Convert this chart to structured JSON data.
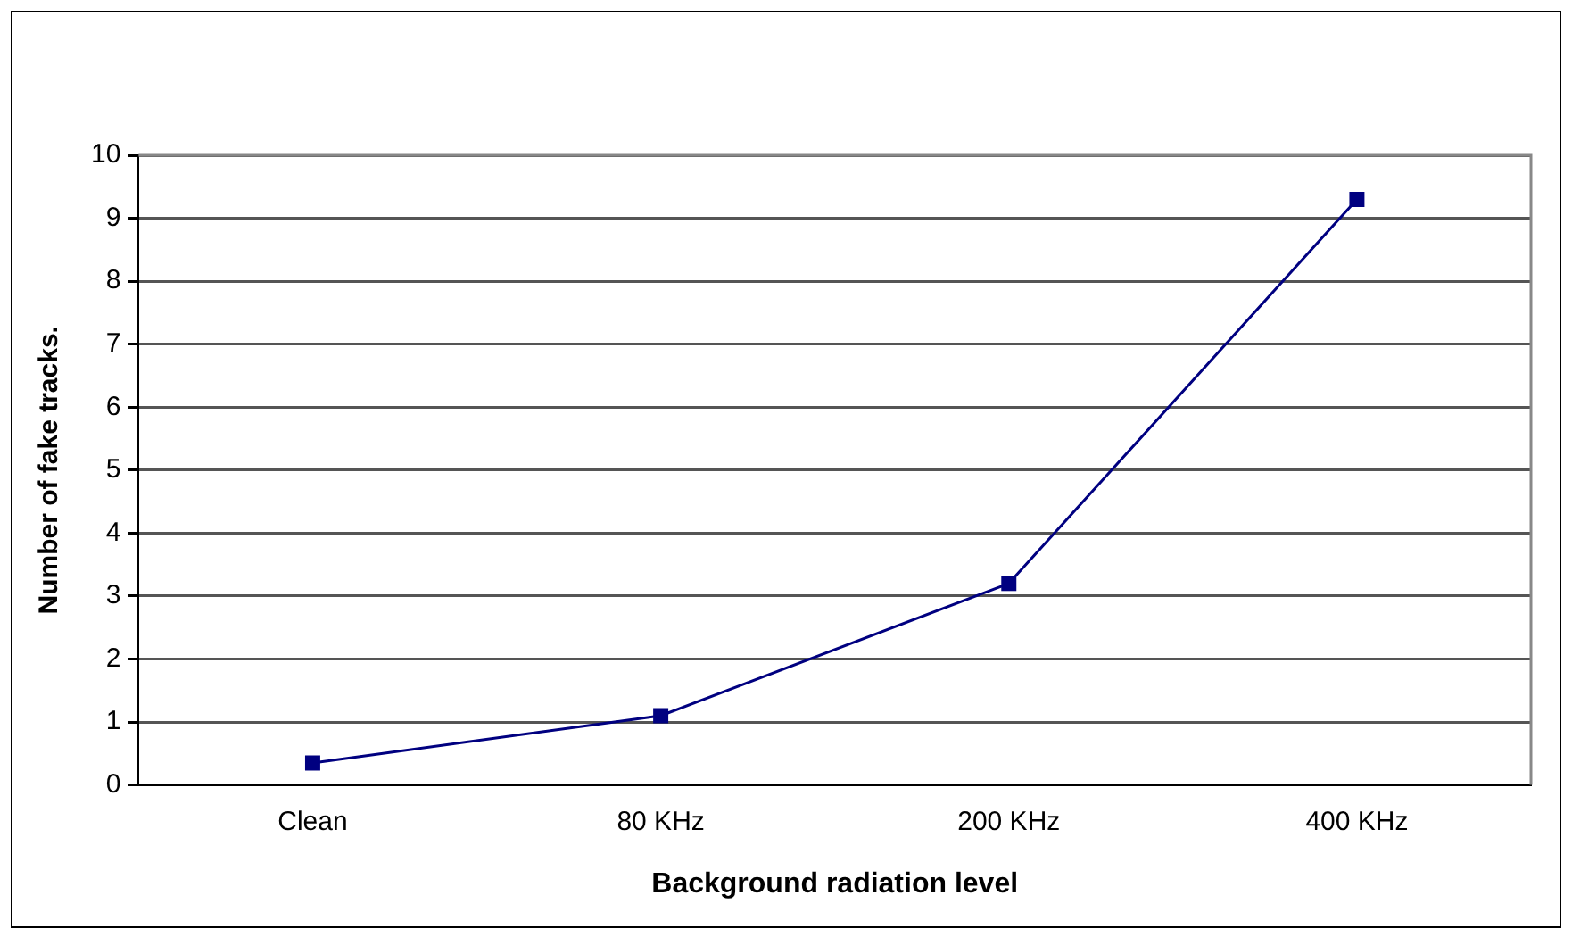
{
  "chart_data": {
    "type": "line",
    "xlabel": "Background radiation level",
    "ylabel": "Number of fake tracks.",
    "categories": [
      "Clean",
      "80 KHz",
      "200 KHz",
      "400 KHz"
    ],
    "series": [
      {
        "color": "#000080",
        "values": [
          0.35,
          1.1,
          3.2,
          9.3
        ]
      }
    ],
    "ylim": [
      0,
      10
    ],
    "yticks": [
      0,
      1,
      2,
      3,
      4,
      5,
      6,
      7,
      8,
      9,
      10
    ],
    "grid": "y",
    "legend": false,
    "marker": "square",
    "line_style": "solid"
  }
}
